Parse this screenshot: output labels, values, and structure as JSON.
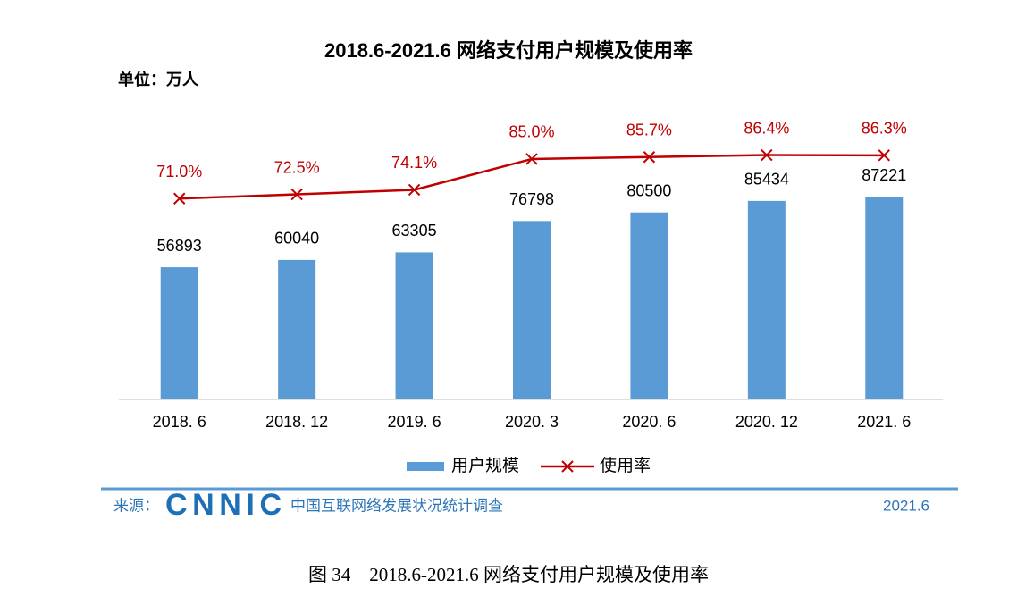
{
  "chart_data": {
    "type": "bar-line",
    "title": "2018.6-2021.6 网络支付用户规模及使用率",
    "unit_label": "单位：万人",
    "categories": [
      "2018. 6",
      "2018. 12",
      "2019. 6",
      "2020. 3",
      "2020. 6",
      "2020. 12",
      "2021. 6"
    ],
    "series": [
      {
        "name": "用户规模",
        "type": "bar",
        "color": "#5b9bd5",
        "values": [
          56893,
          60040,
          63305,
          76798,
          80500,
          85434,
          87221
        ]
      },
      {
        "name": "使用率",
        "type": "line",
        "axis": "y2",
        "color": "#c00000",
        "values": [
          71.0,
          72.5,
          74.1,
          85.0,
          85.7,
          86.4,
          86.3
        ],
        "value_labels": [
          "71.0%",
          "72.5%",
          "74.1%",
          "85.0%",
          "85.7%",
          "86.4%",
          "86.3%"
        ]
      }
    ],
    "ylim": [
      0,
      140000
    ],
    "y2lim": [
      0,
      115
    ],
    "legend": "bottom"
  },
  "footer": {
    "source_label": "来源：",
    "logo": "CNNIC",
    "source": "中国互联网络发展状况统计调查",
    "date": "2021.6"
  },
  "caption": "图 34    2018.6-2021.6 网络支付用户规模及使用率"
}
